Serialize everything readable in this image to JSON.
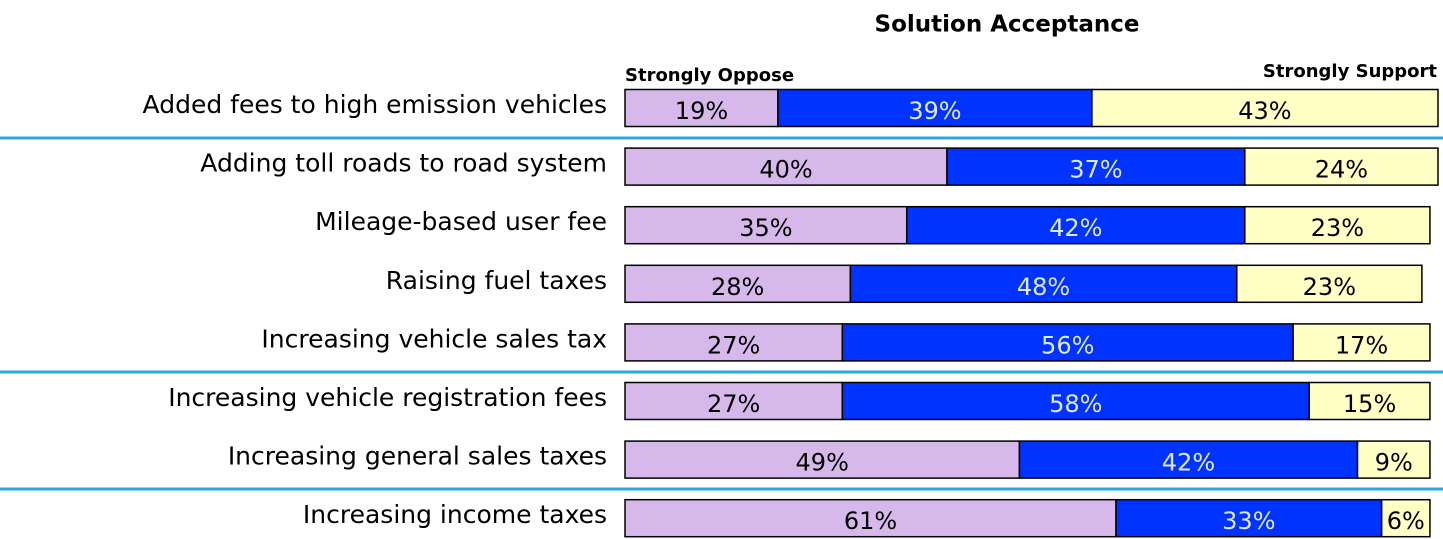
{
  "chart_data": {
    "type": "stacked-bar-horizontal",
    "title": "Solution Acceptance",
    "left_label": "Strongly Oppose",
    "right_label": "Strongly Support",
    "categories": [
      "Added fees to high emission vehicles",
      "Adding toll roads to road system",
      "Mileage-based user fee",
      "Raising fuel taxes",
      "Increasing vehicle sales tax",
      "Increasing vehicle registration fees",
      "Increasing general sales taxes",
      "Increasing income taxes"
    ],
    "series": [
      {
        "name": "Strongly Oppose",
        "color": "#d6b9ea",
        "values": [
          19,
          40,
          35,
          28,
          27,
          27,
          49,
          61
        ],
        "value_labels": [
          "19%",
          "40%",
          "35%",
          "28%",
          "27%",
          "27%",
          "49%",
          "61%"
        ]
      },
      {
        "color": "#0033ff",
        "values": [
          39,
          37,
          42,
          48,
          56,
          58,
          42,
          33
        ],
        "value_labels": [
          "39%",
          "37%",
          "42%",
          "48%",
          "56%",
          "58%",
          "42%",
          "33%"
        ]
      },
      {
        "name": "Strongly Support",
        "color": "#ffffc6",
        "values": [
          43,
          24,
          23,
          23,
          17,
          15,
          9,
          6
        ],
        "value_labels": [
          "43%",
          "24%",
          "23%",
          "23%",
          "17%",
          "15%",
          "9%",
          "6%"
        ]
      }
    ]
  }
}
